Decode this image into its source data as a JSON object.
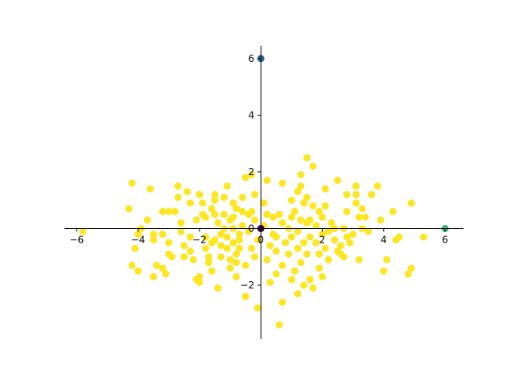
{
  "chart_data": {
    "type": "scatter",
    "title": "",
    "xlabel": "",
    "ylabel": "",
    "xlim": [
      -6.4,
      6.6
    ],
    "ylim": [
      -3.9,
      6.45
    ],
    "xticks": [
      -6,
      -4,
      -2,
      0,
      2,
      4,
      6
    ],
    "yticks": [
      -2,
      0,
      2,
      4,
      6
    ],
    "xtick_labels": [
      "−6",
      "−4",
      "−2",
      "0",
      "2",
      "4",
      "6"
    ],
    "ytick_labels": [
      "−2",
      "0",
      "2",
      "4",
      "6"
    ],
    "spines": "centered at origin",
    "grid": false,
    "colors": {
      "cloud": "#fde725",
      "origin": "#440154",
      "top": "#31688e",
      "right": "#35b779"
    },
    "series": [
      {
        "color": "#fde725",
        "points": [
          [
            -5.8,
            -0.1
          ],
          [
            -4.2,
            1.6
          ],
          [
            -4.3,
            0.7
          ],
          [
            -3.6,
            1.4
          ],
          [
            -4.0,
            -0.2
          ],
          [
            -3.9,
            0.0
          ],
          [
            -3.7,
            0.3
          ],
          [
            -4.1,
            -0.7
          ],
          [
            -4.0,
            -1.5
          ],
          [
            -4.2,
            -1.3
          ],
          [
            -3.5,
            -0.2
          ],
          [
            -3.5,
            -0.4
          ],
          [
            -3.4,
            -1.3
          ],
          [
            -3.5,
            -1.7
          ],
          [
            -3.2,
            -1.4
          ],
          [
            -3.1,
            -1.6
          ],
          [
            -3.2,
            0.6
          ],
          [
            -3.0,
            0.6
          ],
          [
            -3.2,
            -0.2
          ],
          [
            -3.0,
            -0.5
          ],
          [
            -3.0,
            -0.9
          ],
          [
            -2.8,
            0.6
          ],
          [
            -2.9,
            -1.0
          ],
          [
            -2.7,
            1.1
          ],
          [
            -2.7,
            1.5
          ],
          [
            -2.6,
            0.2
          ],
          [
            -2.6,
            -0.1
          ],
          [
            -2.5,
            -0.6
          ],
          [
            -2.5,
            -1.0
          ],
          [
            -2.4,
            1.3
          ],
          [
            -2.3,
            0.9
          ],
          [
            -2.3,
            -0.3
          ],
          [
            -2.3,
            -0.8
          ],
          [
            -2.2,
            -1.1
          ],
          [
            -2.1,
            -1.8
          ],
          [
            -2.0,
            -1.7
          ],
          [
            -2.0,
            -1.9
          ],
          [
            -2.1,
            0.3
          ],
          [
            -2.0,
            1.2
          ],
          [
            -1.9,
            0.9
          ],
          [
            -1.9,
            0.5
          ],
          [
            -1.8,
            0.4
          ],
          [
            -1.8,
            -0.3
          ],
          [
            -1.8,
            -0.7
          ],
          [
            -1.7,
            -1.0
          ],
          [
            -1.7,
            -1.2
          ],
          [
            -1.6,
            0.7
          ],
          [
            -1.6,
            -0.5
          ],
          [
            -1.6,
            -1.5
          ],
          [
            -1.5,
            1.2
          ],
          [
            -1.5,
            1.0
          ],
          [
            -1.5,
            0.5
          ],
          [
            -1.5,
            -0.4
          ],
          [
            -1.4,
            -2.1
          ],
          [
            -1.4,
            0.2
          ],
          [
            -1.3,
            -0.2
          ],
          [
            -1.3,
            -0.6
          ],
          [
            -1.3,
            -1.0
          ],
          [
            -1.2,
            1.1
          ],
          [
            -1.2,
            0.5
          ],
          [
            -1.2,
            0.0
          ],
          [
            -1.1,
            -0.3
          ],
          [
            -1.1,
            -0.7
          ],
          [
            -1.1,
            1.5
          ],
          [
            -1.0,
            -1.1
          ],
          [
            -1.0,
            -1.4
          ],
          [
            -1.0,
            0.3
          ],
          [
            -0.9,
            0.9
          ],
          [
            -0.9,
            0.4
          ],
          [
            -0.9,
            0.0
          ],
          [
            -0.9,
            -0.5
          ],
          [
            -0.8,
            -0.9
          ],
          [
            -0.8,
            -1.2
          ],
          [
            -0.8,
            -1.7
          ],
          [
            -0.8,
            0.7
          ],
          [
            -0.7,
            -0.2
          ],
          [
            -0.7,
            -0.4
          ],
          [
            -0.7,
            -0.7
          ],
          [
            -0.6,
            0.1
          ],
          [
            -0.6,
            0.6
          ],
          [
            -0.6,
            1.1
          ],
          [
            -0.5,
            -1.3
          ],
          [
            -0.5,
            -2.4
          ],
          [
            -0.5,
            1.8
          ],
          [
            -0.4,
            0.5
          ],
          [
            -0.4,
            -0.1
          ],
          [
            -0.3,
            -0.7
          ],
          [
            -0.3,
            0.6
          ],
          [
            -0.3,
            1.9
          ],
          [
            -0.2,
            1.2
          ],
          [
            -0.2,
            0.3
          ],
          [
            -0.2,
            -1.0
          ],
          [
            -0.1,
            -2.8
          ],
          [
            -0.1,
            -0.4
          ],
          [
            0.1,
            0.9
          ],
          [
            0.1,
            0.1
          ],
          [
            0.2,
            -1.1
          ],
          [
            0.2,
            0.5
          ],
          [
            0.2,
            1.7
          ],
          [
            0.3,
            -0.6
          ],
          [
            0.3,
            -1.9
          ],
          [
            0.4,
            0.4
          ],
          [
            0.4,
            -0.2
          ],
          [
            0.5,
            -0.3
          ],
          [
            0.5,
            -0.8
          ],
          [
            0.5,
            -1.6
          ],
          [
            0.6,
            0.5
          ],
          [
            0.6,
            -3.4
          ],
          [
            0.7,
            -2.6
          ],
          [
            0.7,
            1.6
          ],
          [
            0.7,
            0.2
          ],
          [
            0.7,
            -1.3
          ],
          [
            0.8,
            -0.5
          ],
          [
            0.9,
            0.0
          ],
          [
            0.9,
            -0.9
          ],
          [
            1.0,
            1.0
          ],
          [
            1.0,
            0.4
          ],
          [
            1.0,
            -0.3
          ],
          [
            1.0,
            -1.8
          ],
          [
            1.1,
            -1.5
          ],
          [
            1.1,
            0.6
          ],
          [
            1.2,
            1.3
          ],
          [
            1.2,
            -0.1
          ],
          [
            1.2,
            -0.7
          ],
          [
            1.2,
            -2.3
          ],
          [
            1.3,
            1.9
          ],
          [
            1.3,
            1.5
          ],
          [
            1.3,
            0.3
          ],
          [
            1.3,
            -1.2
          ],
          [
            1.4,
            -2.0
          ],
          [
            1.4,
            0.9
          ],
          [
            1.4,
            -0.5
          ],
          [
            1.5,
            2.5
          ],
          [
            1.5,
            1.1
          ],
          [
            1.5,
            0.2
          ],
          [
            1.5,
            -0.9
          ],
          [
            1.6,
            -1.8
          ],
          [
            1.6,
            0.3
          ],
          [
            1.6,
            -0.3
          ],
          [
            1.7,
            2.2
          ],
          [
            1.7,
            -2.1
          ],
          [
            1.7,
            0.8
          ],
          [
            1.8,
            0.1
          ],
          [
            1.8,
            -0.5
          ],
          [
            1.9,
            -1.4
          ],
          [
            1.9,
            -0.9
          ],
          [
            1.9,
            0.6
          ],
          [
            2.0,
            -0.2
          ],
          [
            2.0,
            -1.7
          ],
          [
            2.0,
            0.4
          ],
          [
            2.1,
            1.4
          ],
          [
            2.1,
            -0.7
          ],
          [
            2.1,
            0.8
          ],
          [
            2.2,
            -0.1
          ],
          [
            2.2,
            -1.1
          ],
          [
            2.3,
            0.2
          ],
          [
            2.4,
            -0.4
          ],
          [
            2.4,
            0.0
          ],
          [
            2.5,
            1.7
          ],
          [
            2.5,
            -0.8
          ],
          [
            2.6,
            -0.6
          ],
          [
            2.6,
            -0.9
          ],
          [
            2.7,
            -1.0
          ],
          [
            2.7,
            0.0
          ],
          [
            2.8,
            -0.3
          ],
          [
            2.8,
            0.6
          ],
          [
            2.8,
            1.2
          ],
          [
            2.9,
            -0.5
          ],
          [
            3.0,
            -0.2
          ],
          [
            3.1,
            1.2
          ],
          [
            3.1,
            0.9
          ],
          [
            3.2,
            -1.1
          ],
          [
            3.2,
            0.4
          ],
          [
            3.3,
            0.7
          ],
          [
            3.3,
            0.0
          ],
          [
            3.4,
            0.4
          ],
          [
            3.5,
            -0.1
          ],
          [
            3.6,
            1.2
          ],
          [
            3.8,
            1.5
          ],
          [
            3.9,
            0.3
          ],
          [
            4.0,
            -1.5
          ],
          [
            4.1,
            -1.1
          ],
          [
            4.3,
            0.6
          ],
          [
            4.4,
            -0.4
          ],
          [
            4.5,
            -0.3
          ],
          [
            4.8,
            -1.6
          ],
          [
            4.9,
            -1.4
          ],
          [
            4.9,
            0.9
          ],
          [
            5.3,
            -0.3
          ],
          [
            3.1,
            1.5
          ]
        ]
      },
      {
        "color": "#440154",
        "points": [
          [
            0,
            0
          ]
        ]
      },
      {
        "color": "#31688e",
        "points": [
          [
            0,
            6
          ]
        ]
      },
      {
        "color": "#35b779",
        "points": [
          [
            6,
            0
          ]
        ]
      }
    ]
  }
}
